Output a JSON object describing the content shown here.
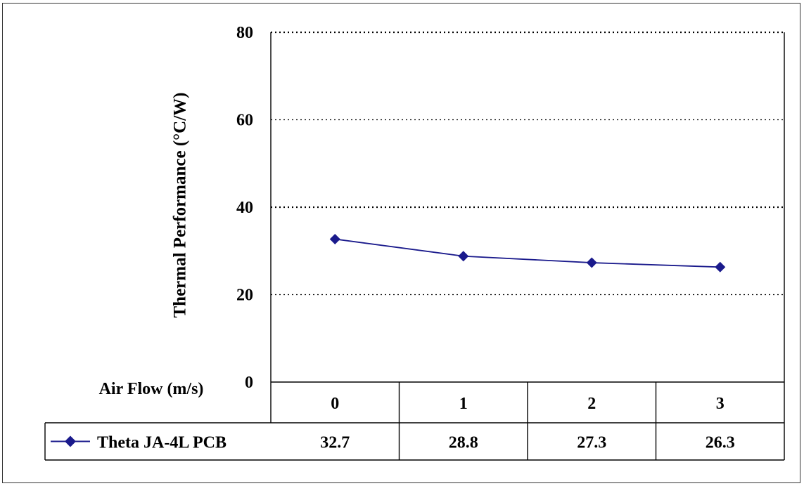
{
  "chart_data": {
    "type": "line",
    "title": "",
    "xlabel": "Air Flow (m/s)",
    "ylabel": "Thermal Performance (°C/W)",
    "ylim": [
      0,
      80
    ],
    "yticks": [
      0,
      20,
      40,
      60,
      80
    ],
    "grid": "horizontal dotted",
    "legend": "data-table",
    "categories": [
      "0",
      "1",
      "2",
      "3"
    ],
    "series": [
      {
        "name": "Theta JA-4L PCB",
        "values": [
          32.7,
          28.8,
          27.3,
          26.3
        ],
        "value_labels": [
          "32.7",
          "28.8",
          "27.3",
          "26.3"
        ],
        "color": "#1a1a8c",
        "marker": "diamond"
      }
    ]
  }
}
